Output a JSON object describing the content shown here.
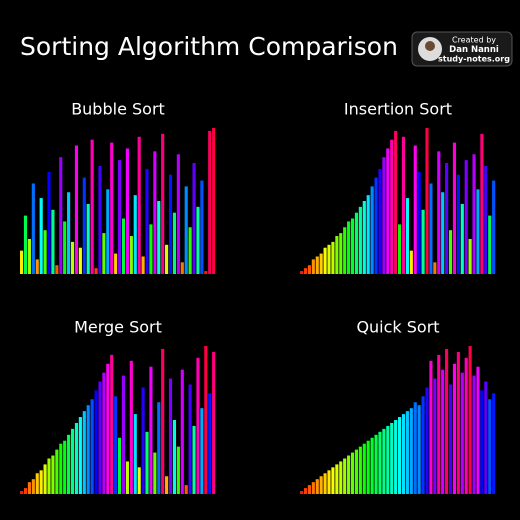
{
  "title": "Sorting Algorithm Comparison",
  "credit": {
    "line1": "Created by",
    "name": "Dan Nanni",
    "site": "study-notes.org"
  },
  "chart_data": [
    {
      "type": "bar",
      "title": "Bubble Sort",
      "colormap": "hsv",
      "ylim": [
        0,
        50
      ],
      "values": [
        8,
        20,
        12,
        31,
        5,
        26,
        15,
        35,
        22,
        3,
        40,
        18,
        28,
        11,
        44,
        9,
        33,
        24,
        46,
        2,
        37,
        14,
        29,
        45,
        7,
        39,
        19,
        43,
        13,
        27,
        47,
        6,
        36,
        17,
        42,
        25,
        48,
        10,
        34,
        21,
        41,
        4,
        30,
        16,
        38,
        23,
        32,
        1,
        49,
        50
      ]
    },
    {
      "type": "bar",
      "title": "Insertion Sort",
      "colormap": "hsv",
      "ylim": [
        0,
        50
      ],
      "values": [
        1,
        2,
        3,
        5,
        6,
        7,
        9,
        10,
        11,
        13,
        14,
        16,
        18,
        19,
        21,
        23,
        25,
        27,
        30,
        33,
        36,
        40,
        43,
        46,
        49,
        17,
        47,
        26,
        8,
        44,
        35,
        22,
        50,
        31,
        4,
        42,
        28,
        38,
        15,
        45,
        34,
        24,
        39,
        12,
        41,
        29,
        48,
        37,
        20,
        32
      ]
    },
    {
      "type": "bar",
      "title": "Merge Sort",
      "colormap": "hsv",
      "ylim": [
        0,
        50
      ],
      "values": [
        1,
        2,
        4,
        5,
        7,
        8,
        10,
        12,
        13,
        15,
        17,
        18,
        20,
        22,
        24,
        26,
        28,
        30,
        32,
        35,
        38,
        41,
        44,
        47,
        33,
        19,
        40,
        11,
        45,
        27,
        9,
        36,
        21,
        43,
        14,
        31,
        49,
        6,
        39,
        25,
        16,
        42,
        3,
        37,
        23,
        46,
        29,
        50,
        34,
        48
      ]
    },
    {
      "type": "bar",
      "title": "Quick Sort",
      "colormap": "hsv",
      "ylim": [
        0,
        50
      ],
      "values": [
        1,
        2,
        3,
        4,
        5,
        6,
        7,
        8,
        9,
        10,
        11,
        12,
        13,
        14,
        15,
        16,
        17,
        18,
        19,
        20,
        21,
        22,
        23,
        24,
        25,
        26,
        27,
        28,
        29,
        31,
        30,
        33,
        36,
        45,
        39,
        47,
        42,
        49,
        37,
        44,
        48,
        41,
        46,
        50,
        40,
        43,
        35,
        38,
        32,
        34
      ]
    }
  ]
}
